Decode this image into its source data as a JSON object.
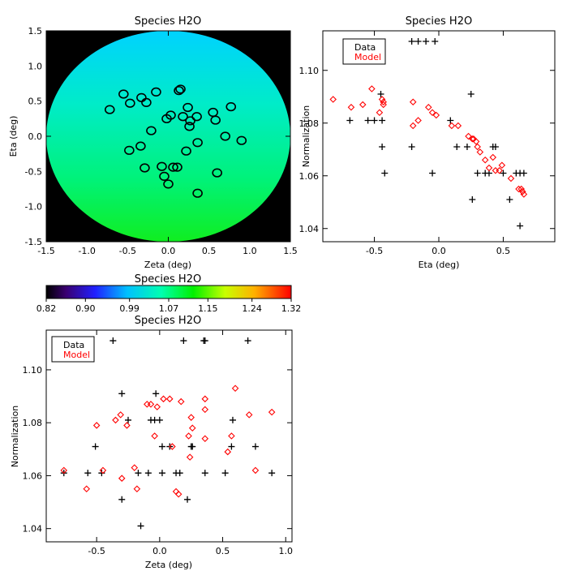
{
  "chart_data": [
    {
      "type": "heatmap",
      "title": "Species H2O",
      "xlabel": "Zeta (deg)",
      "ylabel": "Eta (deg)",
      "xlim": [
        -1.5,
        1.5
      ],
      "ylim": [
        -1.5,
        1.5
      ],
      "xticks": [
        "-1.5",
        "-1.0",
        "-0.5",
        "0.0",
        "0.5",
        "1.0",
        "1.5"
      ],
      "yticks": [
        "-1.5",
        "-1.0",
        "-0.5",
        "0.0",
        "0.5",
        "1.0",
        "1.5"
      ],
      "field": {
        "shape": "disk",
        "radius": 1.5,
        "low_value": 1.06,
        "high_value": 1.11,
        "gradient": "increasing toward top",
        "background": "#000000"
      },
      "stations": [
        {
          "x": -0.72,
          "y": 0.38
        },
        {
          "x": -0.55,
          "y": 0.6
        },
        {
          "x": -0.47,
          "y": 0.47
        },
        {
          "x": -0.33,
          "y": 0.55
        },
        {
          "x": -0.27,
          "y": 0.48
        },
        {
          "x": -0.15,
          "y": 0.63
        },
        {
          "x": 0.13,
          "y": 0.65
        },
        {
          "x": 0.15,
          "y": 0.67
        },
        {
          "x": 0.24,
          "y": 0.41
        },
        {
          "x": 0.27,
          "y": 0.22
        },
        {
          "x": 0.35,
          "y": 0.28
        },
        {
          "x": 0.55,
          "y": 0.34
        },
        {
          "x": 0.58,
          "y": 0.23
        },
        {
          "x": 0.77,
          "y": 0.42
        },
        {
          "x": 0.03,
          "y": 0.3
        },
        {
          "x": -0.02,
          "y": 0.25
        },
        {
          "x": 0.18,
          "y": 0.28
        },
        {
          "x": 0.26,
          "y": 0.14
        },
        {
          "x": -0.21,
          "y": 0.08
        },
        {
          "x": -0.34,
          "y": -0.14
        },
        {
          "x": -0.48,
          "y": -0.2
        },
        {
          "x": -0.29,
          "y": -0.45
        },
        {
          "x": -0.08,
          "y": -0.43
        },
        {
          "x": 0.06,
          "y": -0.44
        },
        {
          "x": 0.11,
          "y": -0.44
        },
        {
          "x": -0.05,
          "y": -0.57
        },
        {
          "x": 0.0,
          "y": -0.68
        },
        {
          "x": 0.36,
          "y": -0.09
        },
        {
          "x": 0.22,
          "y": -0.21
        },
        {
          "x": 0.6,
          "y": -0.52
        },
        {
          "x": 0.36,
          "y": -0.81
        },
        {
          "x": 0.7,
          "y": 0.0
        },
        {
          "x": 0.9,
          "y": -0.06
        }
      ]
    },
    {
      "type": "scatter",
      "title": "Species H2O",
      "xlabel": "Eta (deg)",
      "ylabel": "Normalization",
      "xlim": [
        -0.9,
        0.9
      ],
      "ylim": [
        1.035,
        1.115
      ],
      "xticks": [
        "-0.5",
        "0.0",
        "0.5"
      ],
      "yticks": [
        "1.04",
        "1.06",
        "1.08",
        "1.10"
      ],
      "legend": "top-left",
      "series": [
        {
          "name": "Data",
          "marker": "plus",
          "color": "#000000",
          "points": [
            [
              -0.69,
              1.081
            ],
            [
              -0.55,
              1.081
            ],
            [
              -0.5,
              1.081
            ],
            [
              -0.45,
              1.091
            ],
            [
              -0.44,
              1.081
            ],
            [
              -0.44,
              1.071
            ],
            [
              -0.42,
              1.061
            ],
            [
              -0.21,
              1.111
            ],
            [
              -0.16,
              1.111
            ],
            [
              -0.1,
              1.111
            ],
            [
              -0.03,
              1.111
            ],
            [
              -0.21,
              1.071
            ],
            [
              -0.05,
              1.061
            ],
            [
              0.09,
              1.081
            ],
            [
              0.14,
              1.071
            ],
            [
              0.22,
              1.071
            ],
            [
              0.25,
              1.091
            ],
            [
              0.26,
              1.051
            ],
            [
              0.3,
              1.061
            ],
            [
              0.36,
              1.061
            ],
            [
              0.39,
              1.061
            ],
            [
              0.42,
              1.071
            ],
            [
              0.44,
              1.071
            ],
            [
              0.6,
              1.061
            ],
            [
              0.63,
              1.061
            ],
            [
              0.66,
              1.061
            ],
            [
              0.63,
              1.041
            ],
            [
              0.55,
              1.051
            ],
            [
              0.5,
              1.061
            ]
          ]
        },
        {
          "name": "Model",
          "marker": "diamond",
          "color": "#ff0000",
          "points": [
            [
              -0.82,
              1.089
            ],
            [
              -0.68,
              1.086
            ],
            [
              -0.59,
              1.087
            ],
            [
              -0.52,
              1.093
            ],
            [
              -0.46,
              1.084
            ],
            [
              -0.44,
              1.089
            ],
            [
              -0.43,
              1.088
            ],
            [
              -0.43,
              1.087
            ],
            [
              -0.2,
              1.088
            ],
            [
              -0.2,
              1.079
            ],
            [
              -0.16,
              1.081
            ],
            [
              -0.08,
              1.086
            ],
            [
              -0.05,
              1.084
            ],
            [
              -0.02,
              1.083
            ],
            [
              0.1,
              1.079
            ],
            [
              0.15,
              1.079
            ],
            [
              0.23,
              1.075
            ],
            [
              0.26,
              1.074
            ],
            [
              0.27,
              1.074
            ],
            [
              0.29,
              1.073
            ],
            [
              0.3,
              1.071
            ],
            [
              0.32,
              1.069
            ],
            [
              0.36,
              1.066
            ],
            [
              0.39,
              1.063
            ],
            [
              0.42,
              1.067
            ],
            [
              0.44,
              1.062
            ],
            [
              0.47,
              1.062
            ],
            [
              0.49,
              1.064
            ],
            [
              0.56,
              1.059
            ],
            [
              0.62,
              1.055
            ],
            [
              0.64,
              1.055
            ],
            [
              0.65,
              1.054
            ],
            [
              0.66,
              1.053
            ]
          ]
        }
      ]
    },
    {
      "type": "scatter",
      "title": "Species H2O",
      "xlabel": "Zeta (deg)",
      "ylabel": "Normalization",
      "xlim": [
        -0.9,
        1.05
      ],
      "ylim": [
        1.035,
        1.115
      ],
      "xticks": [
        "-0.5",
        "0.0",
        "0.5",
        "1.0"
      ],
      "yticks": [
        "1.04",
        "1.06",
        "1.08",
        "1.10"
      ],
      "legend": "top-left",
      "series": [
        {
          "name": "Data",
          "marker": "plus",
          "color": "#000000",
          "points": [
            [
              -0.76,
              1.061
            ],
            [
              -0.57,
              1.061
            ],
            [
              -0.51,
              1.071
            ],
            [
              -0.46,
              1.061
            ],
            [
              -0.37,
              1.111
            ],
            [
              -0.3,
              1.091
            ],
            [
              -0.3,
              1.051
            ],
            [
              -0.25,
              1.081
            ],
            [
              -0.17,
              1.061
            ],
            [
              -0.15,
              1.041
            ],
            [
              -0.09,
              1.061
            ],
            [
              -0.07,
              1.081
            ],
            [
              -0.04,
              1.081
            ],
            [
              -0.03,
              1.091
            ],
            [
              0.0,
              1.081
            ],
            [
              0.02,
              1.071
            ],
            [
              0.02,
              1.061
            ],
            [
              0.08,
              1.071
            ],
            [
              0.13,
              1.061
            ],
            [
              0.16,
              1.061
            ],
            [
              0.19,
              1.111
            ],
            [
              0.22,
              1.051
            ],
            [
              0.25,
              1.071
            ],
            [
              0.26,
              1.071
            ],
            [
              0.35,
              1.111
            ],
            [
              0.36,
              1.111
            ],
            [
              0.36,
              1.061
            ],
            [
              0.52,
              1.061
            ],
            [
              0.57,
              1.071
            ],
            [
              0.58,
              1.081
            ],
            [
              0.7,
              1.111
            ],
            [
              0.76,
              1.071
            ],
            [
              0.89,
              1.061
            ]
          ]
        },
        {
          "name": "Model",
          "marker": "diamond",
          "color": "#ff0000",
          "points": [
            [
              -0.76,
              1.062
            ],
            [
              -0.58,
              1.055
            ],
            [
              -0.5,
              1.079
            ],
            [
              -0.45,
              1.062
            ],
            [
              -0.35,
              1.081
            ],
            [
              -0.31,
              1.083
            ],
            [
              -0.3,
              1.059
            ],
            [
              -0.26,
              1.079
            ],
            [
              -0.2,
              1.063
            ],
            [
              -0.18,
              1.055
            ],
            [
              -0.1,
              1.087
            ],
            [
              -0.07,
              1.087
            ],
            [
              -0.04,
              1.075
            ],
            [
              -0.02,
              1.086
            ],
            [
              0.03,
              1.089
            ],
            [
              0.08,
              1.089
            ],
            [
              0.1,
              1.071
            ],
            [
              0.13,
              1.054
            ],
            [
              0.15,
              1.053
            ],
            [
              0.17,
              1.088
            ],
            [
              0.23,
              1.075
            ],
            [
              0.24,
              1.067
            ],
            [
              0.25,
              1.082
            ],
            [
              0.26,
              1.078
            ],
            [
              0.36,
              1.089
            ],
            [
              0.36,
              1.085
            ],
            [
              0.36,
              1.074
            ],
            [
              0.54,
              1.069
            ],
            [
              0.57,
              1.075
            ],
            [
              0.6,
              1.093
            ],
            [
              0.71,
              1.083
            ],
            [
              0.76,
              1.062
            ],
            [
              0.89,
              1.084
            ]
          ]
        }
      ]
    },
    {
      "type": "colorbar",
      "title": "Species H2O",
      "ticks": [
        "0.82",
        "0.90",
        "0.99",
        "1.07",
        "1.15",
        "1.24",
        "1.32"
      ],
      "range": [
        0.82,
        1.32
      ],
      "colormap": "rainbow"
    }
  ]
}
